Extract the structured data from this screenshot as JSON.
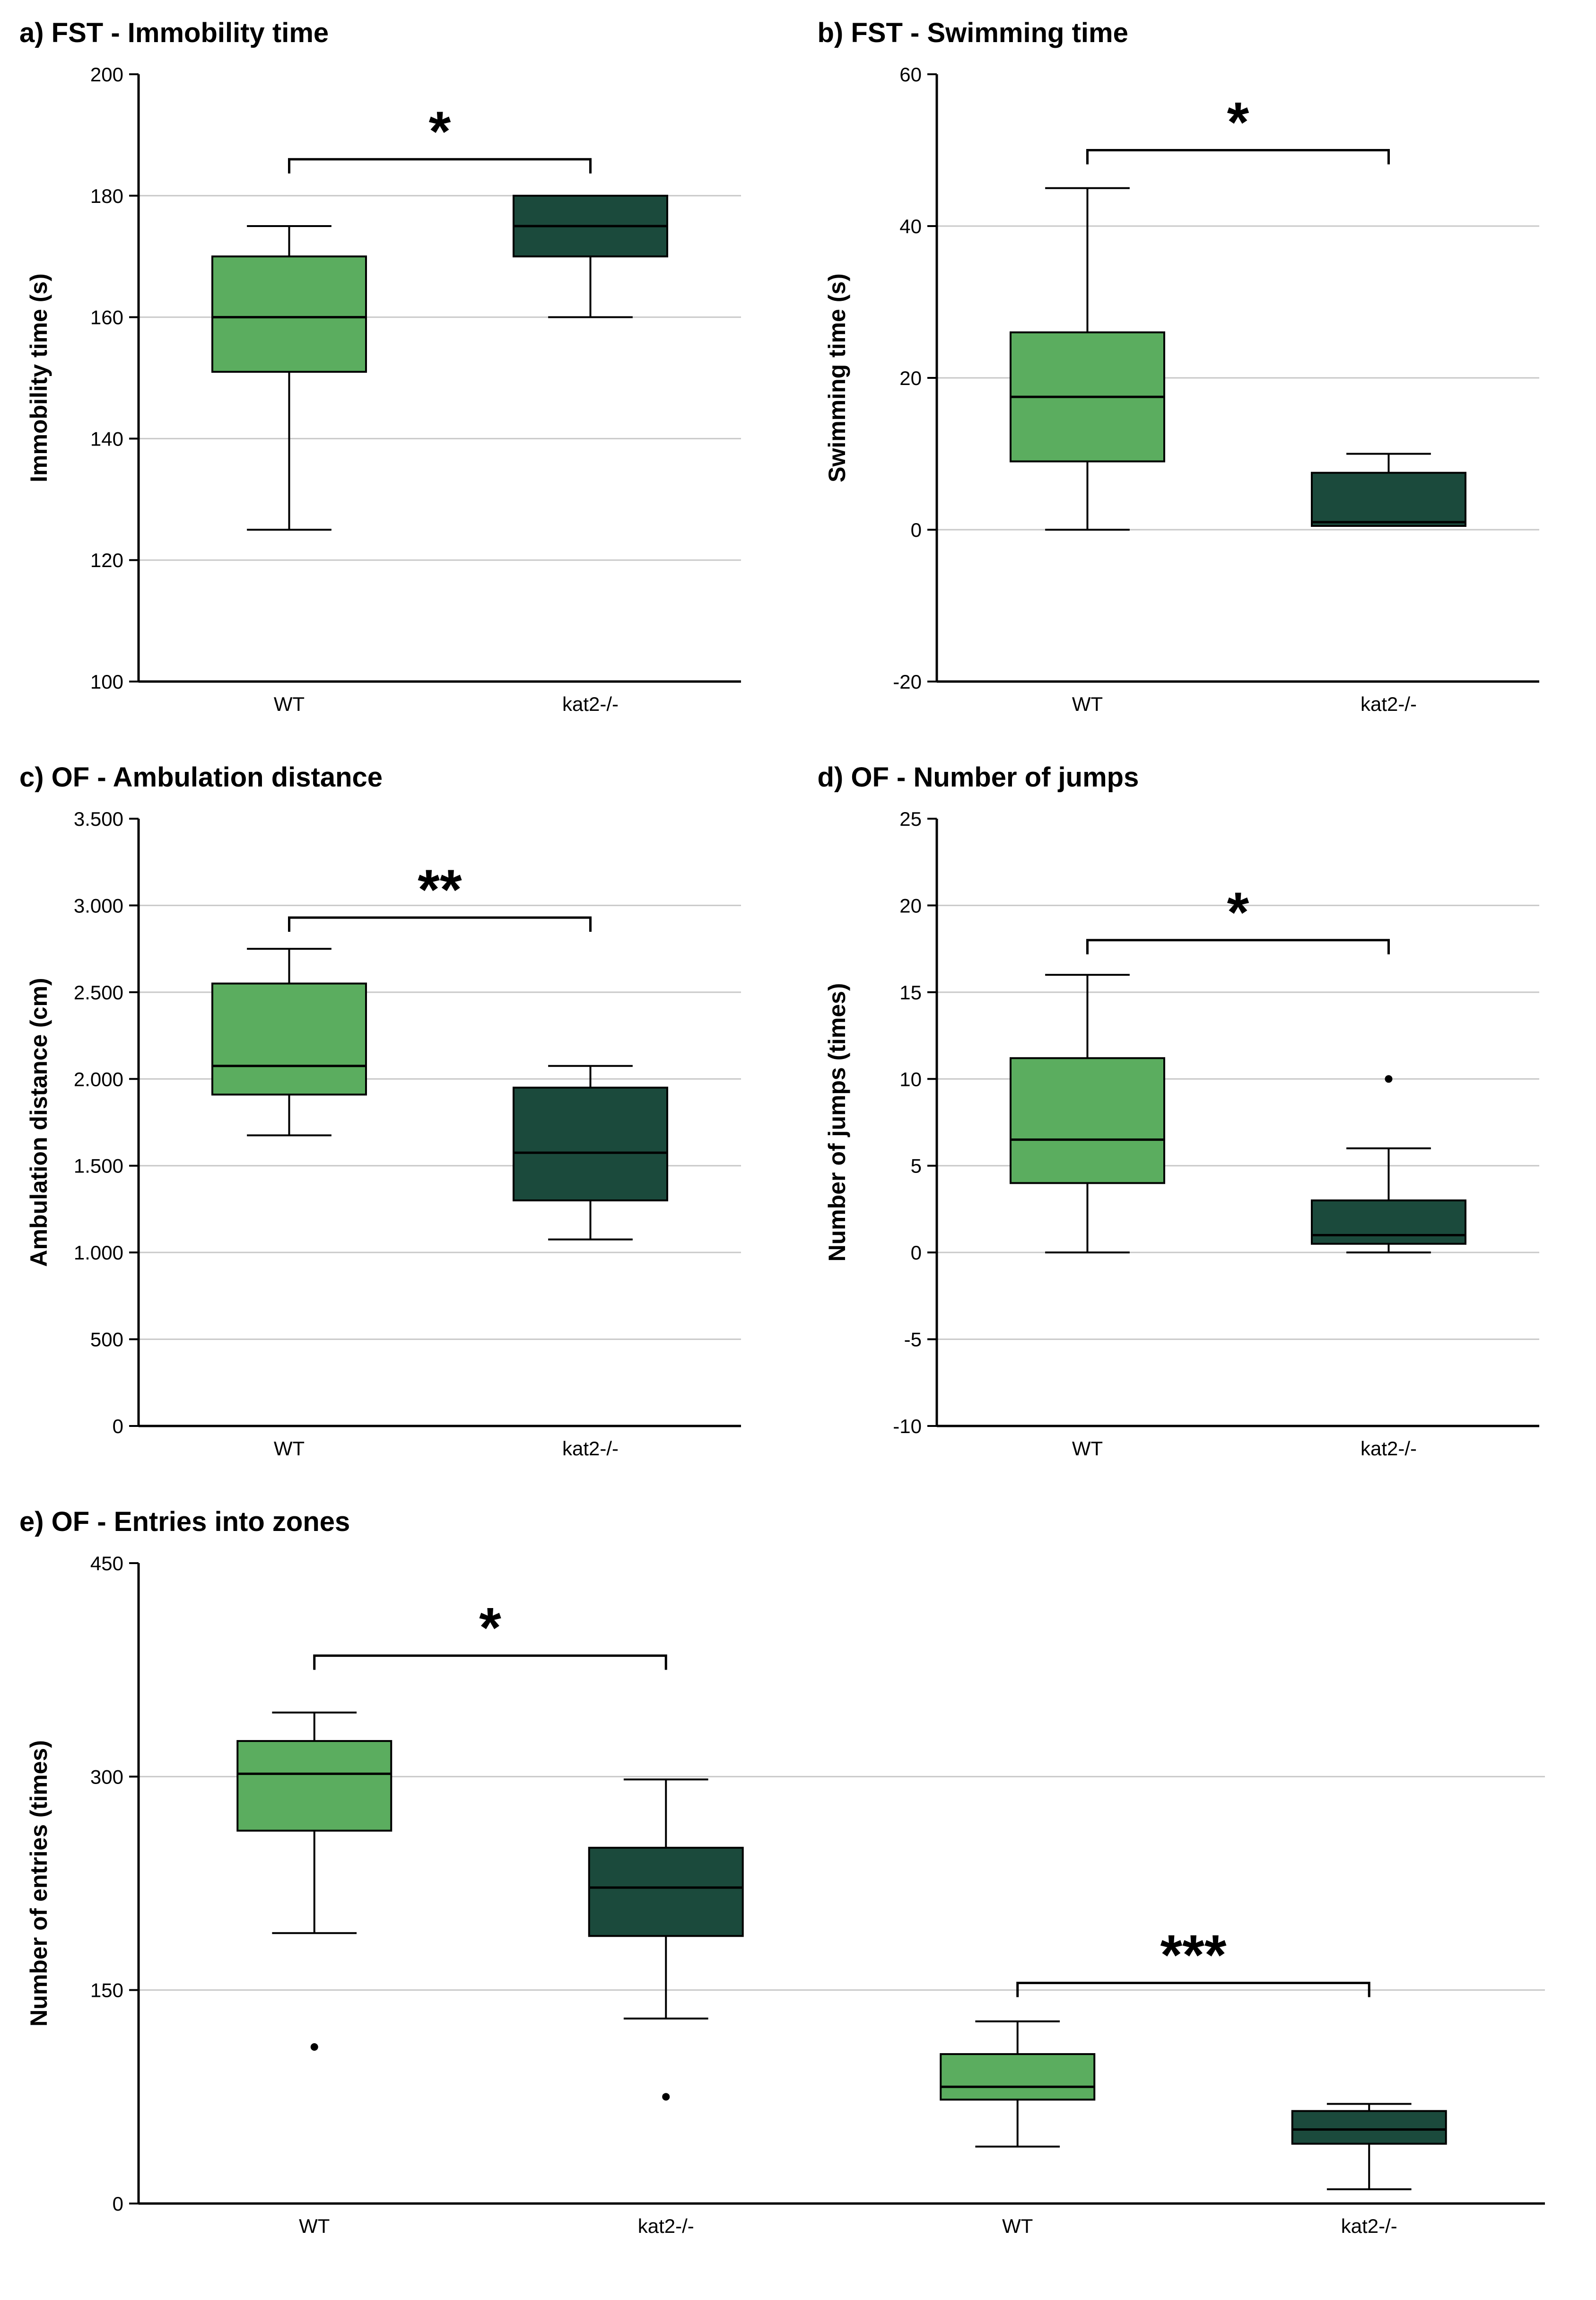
{
  "colors": {
    "light_green": "#5BAD5F",
    "dark_green": "#1B4A3C",
    "grid": "#c9c9c9",
    "axis": "#000000"
  },
  "chart_data": [
    {
      "id": "a",
      "type": "box",
      "title": "a) FST - Immobility time",
      "ylabel": "Immobility time (s)",
      "ylim": [
        100,
        200
      ],
      "yticks": [
        100,
        120,
        140,
        160,
        180,
        200
      ],
      "ytick_labels": [
        "100",
        "120",
        "140",
        "160",
        "180",
        "200"
      ],
      "grid": true,
      "categories": [
        "WT",
        "kat2-/-"
      ],
      "boxes": [
        {
          "group": "WT",
          "fill": "light",
          "whisker_low": 125,
          "q1": 151,
          "median": 160,
          "q3": 170,
          "whisker_high": 175,
          "outliers": []
        },
        {
          "group": "kat2-/-",
          "fill": "dark",
          "whisker_low": 160,
          "q1": 170,
          "median": 175,
          "q3": 180,
          "whisker_high": 180,
          "outliers": []
        }
      ],
      "significance": [
        {
          "x1": 0,
          "x2": 1,
          "y": 186,
          "label": "*"
        }
      ]
    },
    {
      "id": "b",
      "type": "box",
      "title": "b) FST - Swimming time",
      "ylabel": "Swimming time (s)",
      "ylim": [
        -20,
        60
      ],
      "yticks": [
        -20,
        0,
        20,
        40,
        60
      ],
      "ytick_labels": [
        "-20",
        "0",
        "20",
        "40",
        "60"
      ],
      "grid": true,
      "categories": [
        "WT",
        "kat2-/-"
      ],
      "boxes": [
        {
          "group": "WT",
          "fill": "light",
          "whisker_low": 0,
          "q1": 9,
          "median": 17.5,
          "q3": 26,
          "whisker_high": 45,
          "outliers": []
        },
        {
          "group": "kat2-/-",
          "fill": "dark",
          "whisker_low": 0.5,
          "q1": 0.5,
          "median": 1,
          "q3": 7.5,
          "whisker_high": 10,
          "outliers": []
        }
      ],
      "significance": [
        {
          "x1": 0,
          "x2": 1,
          "y": 50,
          "label": "*"
        }
      ]
    },
    {
      "id": "c",
      "type": "box",
      "title": "c) OF - Ambulation distance",
      "ylabel": "Ambulation distance (cm)",
      "ylim": [
        0,
        3500
      ],
      "yticks": [
        0,
        500,
        1000,
        1500,
        2000,
        2500,
        3000,
        3500
      ],
      "ytick_labels": [
        "0",
        "500",
        "1.000",
        "1.500",
        "2.000",
        "2.500",
        "3.000",
        "3.500"
      ],
      "grid": true,
      "categories": [
        "WT",
        "kat2-/-"
      ],
      "boxes": [
        {
          "group": "WT",
          "fill": "light",
          "whisker_low": 1675,
          "q1": 1910,
          "median": 2075,
          "q3": 2550,
          "whisker_high": 2750,
          "outliers": []
        },
        {
          "group": "kat2-/-",
          "fill": "dark",
          "whisker_low": 1075,
          "q1": 1300,
          "median": 1575,
          "q3": 1950,
          "whisker_high": 2075,
          "outliers": []
        }
      ],
      "significance": [
        {
          "x1": 0,
          "x2": 1,
          "y": 2930,
          "label": "**"
        }
      ]
    },
    {
      "id": "d",
      "type": "box",
      "title": "d) OF - Number of jumps",
      "ylabel": "Number of jumps (times)",
      "ylim": [
        -10,
        25
      ],
      "yticks": [
        -10,
        -5,
        0,
        5,
        10,
        15,
        20,
        25
      ],
      "ytick_labels": [
        "-10",
        "-5",
        "0",
        "5",
        "10",
        "15",
        "20",
        "25"
      ],
      "grid": true,
      "categories": [
        "WT",
        "kat2-/-"
      ],
      "boxes": [
        {
          "group": "WT",
          "fill": "light",
          "whisker_low": 0,
          "q1": 4,
          "median": 6.5,
          "q3": 11.2,
          "whisker_high": 16,
          "outliers": []
        },
        {
          "group": "kat2-/-",
          "fill": "dark",
          "whisker_low": 0,
          "q1": 0.5,
          "median": 1,
          "q3": 3,
          "whisker_high": 6,
          "outliers": [
            10
          ]
        }
      ],
      "significance": [
        {
          "x1": 0,
          "x2": 1,
          "y": 18,
          "label": "*"
        }
      ]
    },
    {
      "id": "e",
      "type": "box",
      "title": "e) OF - Entries into zones",
      "ylabel": "Number of entries (times)",
      "ylim": [
        0,
        450
      ],
      "yticks": [
        0,
        150,
        300,
        450
      ],
      "ytick_labels": [
        "0",
        "150",
        "300",
        "450"
      ],
      "grid": true,
      "categories": [
        "WT",
        "kat2-/-",
        "WT",
        "kat2-/-"
      ],
      "boxes": [
        {
          "group": "WT",
          "fill": "light",
          "whisker_low": 190,
          "q1": 262,
          "median": 302,
          "q3": 325,
          "whisker_high": 345,
          "outliers": [
            110
          ]
        },
        {
          "group": "kat2-/-",
          "fill": "dark",
          "whisker_low": 130,
          "q1": 188,
          "median": 222,
          "q3": 250,
          "whisker_high": 298,
          "outliers": [
            75
          ]
        },
        {
          "group": "WT",
          "fill": "light",
          "whisker_low": 40,
          "q1": 73,
          "median": 82,
          "q3": 105,
          "whisker_high": 128,
          "outliers": []
        },
        {
          "group": "kat2-/-",
          "fill": "dark",
          "whisker_low": 10,
          "q1": 42,
          "median": 52,
          "q3": 65,
          "whisker_high": 70,
          "outliers": []
        }
      ],
      "significance": [
        {
          "x1": 0,
          "x2": 1,
          "y": 385,
          "label": "*"
        },
        {
          "x1": 2,
          "x2": 3,
          "y": 155,
          "label": "***"
        }
      ]
    }
  ]
}
